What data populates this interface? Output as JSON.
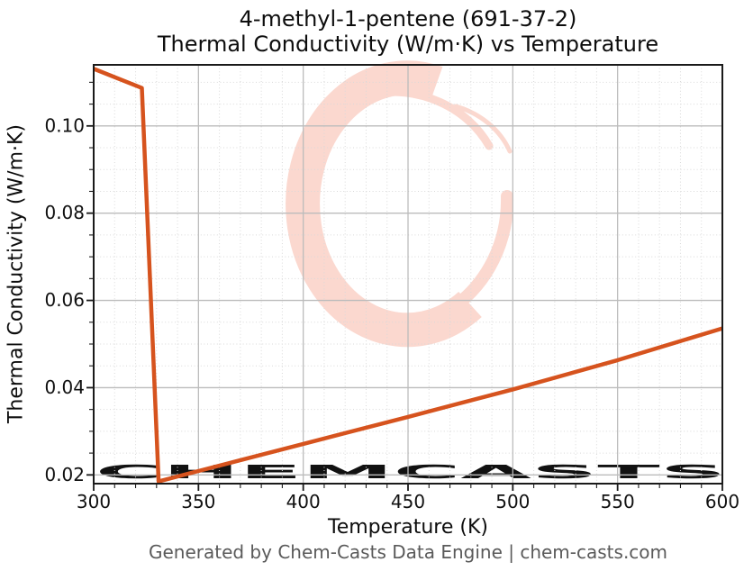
{
  "header": {
    "title_line1": "4-methyl-1-pentene (691-37-2)",
    "title_line2": "Thermal Conductivity (W/m·K) vs Temperature"
  },
  "footer": {
    "text": "Generated by Chem-Casts Data Engine | chem-casts.com"
  },
  "watermark": {
    "text": "CHEMCASTS",
    "logo": "chemcasts-c-swirl",
    "text_color": "#f8cfc5",
    "logo_color": "#fbd8cf"
  },
  "chart_data": {
    "type": "line",
    "title": "4-methyl-1-pentene (691-37-2) Thermal Conductivity (W/m·K) vs Temperature",
    "xlabel": "Temperature (K)",
    "ylabel": "Thermal Conductivity (W/m·K)",
    "xlim": [
      300,
      600
    ],
    "ylim": [
      0.018,
      0.114
    ],
    "x_ticks": [
      300,
      350,
      400,
      450,
      500,
      550,
      600
    ],
    "x_tick_labels": [
      "300",
      "350",
      "400",
      "450",
      "500",
      "550",
      "600"
    ],
    "y_ticks": [
      0.02,
      0.04,
      0.06,
      0.08,
      0.1
    ],
    "y_tick_labels": [
      "0.02",
      "0.04",
      "0.06",
      "0.08",
      "0.10"
    ],
    "x_minor_step": 10,
    "y_minor_step": 0.005,
    "grid": {
      "major": true,
      "minor": true
    },
    "legend": "none",
    "line_color": "#d6531e",
    "line_width": 4.5,
    "series": [
      {
        "name": "Thermal Conductivity",
        "x": [
          300,
          323,
          331,
          350,
          400,
          450,
          500,
          550,
          600
        ],
        "y": [
          0.1131,
          0.1087,
          0.0185,
          0.0209,
          0.0271,
          0.0333,
          0.0396,
          0.0463,
          0.0536
        ]
      }
    ]
  }
}
